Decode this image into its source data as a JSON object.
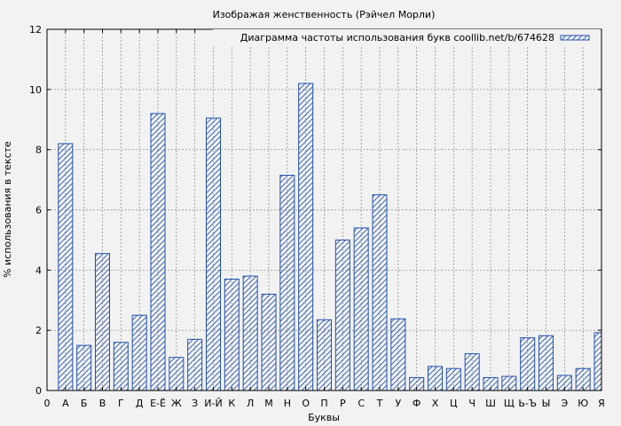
{
  "chart_data": {
    "type": "bar",
    "title": "Изображая женственность (Рэйчел Морли)",
    "xlabel": "Буквы",
    "ylabel": "% использования в тексте",
    "legend": "Диаграмма частоты использования букв coollib.net/b/674628",
    "legend_position": "top-right",
    "grid": true,
    "ylim": [
      0,
      12
    ],
    "yticks": [
      0,
      2,
      4,
      6,
      8,
      10,
      12
    ],
    "x_origin_label": "0",
    "categories": [
      "А",
      "Б",
      "В",
      "Г",
      "Д",
      "Е-Ё",
      "Ж",
      "З",
      "И-Й",
      "К",
      "Л",
      "М",
      "Н",
      "О",
      "П",
      "Р",
      "С",
      "Т",
      "У",
      "Ф",
      "Х",
      "Ц",
      "Ч",
      "Ш",
      "Щ",
      "Ь-Ъ",
      "Ы",
      "Э",
      "Ю",
      "Я"
    ],
    "values": [
      8.2,
      1.5,
      4.55,
      1.6,
      2.5,
      9.2,
      1.1,
      1.7,
      9.05,
      3.7,
      3.8,
      3.2,
      7.15,
      10.2,
      2.35,
      5.0,
      5.4,
      6.5,
      2.38,
      0.43,
      0.8,
      0.73,
      1.22,
      0.43,
      0.47,
      1.75,
      1.82,
      0.5,
      0.73,
      1.92
    ],
    "colors": {
      "bar_stroke": "#2050b0",
      "background": "#f2f2f2",
      "grid": "#888888"
    }
  }
}
